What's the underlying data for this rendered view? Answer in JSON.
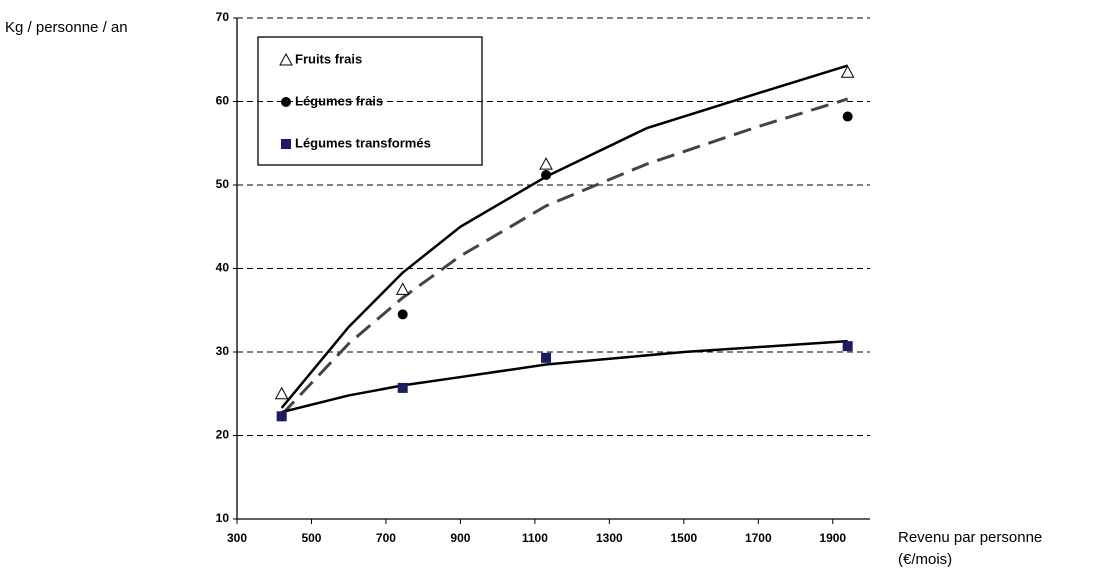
{
  "chart_data": {
    "type": "scatter",
    "ylabel": "Kg / personne / an",
    "xlabel": [
      "Revenu par personne",
      "(€/mois)"
    ],
    "xlim": [
      300,
      2000
    ],
    "ylim": [
      10,
      70
    ],
    "xticks": [
      300,
      500,
      700,
      900,
      1100,
      1300,
      1500,
      1700,
      1900
    ],
    "yticks": [
      10,
      20,
      30,
      40,
      50,
      60,
      70
    ],
    "grid": true,
    "legend": "upper left",
    "series": [
      {
        "name": "Fruits frais",
        "marker": "triangle",
        "color": "#000000",
        "x": [
          420,
          745,
          1130,
          1940
        ],
        "values": [
          25,
          37.5,
          52.5,
          63.5
        ],
        "trend": {
          "dash": false,
          "color": "#000000",
          "x": [
            420,
            600,
            745,
            900,
            1130,
            1400,
            1700,
            1940
          ],
          "values": [
            23.3,
            33,
            39.5,
            45,
            51,
            56.8,
            61,
            64.3
          ]
        }
      },
      {
        "name": "Légumes frais",
        "marker": "circle",
        "color": "#000000",
        "x": [
          420,
          745,
          1130,
          1940
        ],
        "values": [
          22.3,
          34.5,
          51.2,
          58.2
        ],
        "trend": {
          "dash": true,
          "color": "#444444",
          "x": [
            420,
            600,
            745,
            900,
            1130,
            1400,
            1700,
            1940
          ],
          "values": [
            22.5,
            31,
            36.5,
            41.5,
            47.5,
            52.5,
            57,
            60.3
          ]
        }
      },
      {
        "name": "Légumes transformés",
        "marker": "square",
        "color": "#1c1c60",
        "x": [
          420,
          745,
          1130,
          1940
        ],
        "values": [
          22.3,
          25.7,
          29.3,
          30.7
        ],
        "trend": {
          "dash": false,
          "color": "#000000",
          "x": [
            420,
            600,
            745,
            900,
            1130,
            1500,
            1940
          ],
          "values": [
            22.8,
            24.8,
            26,
            27,
            28.5,
            30,
            31.3
          ]
        }
      }
    ]
  }
}
